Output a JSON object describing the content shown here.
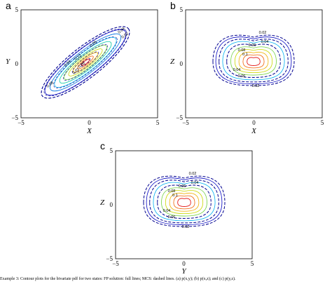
{
  "panels": [
    {
      "letter": "a",
      "xlabel": "X",
      "ylabel": "Y",
      "xticks": [
        "−5",
        "0",
        "5"
      ],
      "yticks": [
        "5",
        "0",
        "−5"
      ],
      "contour_labels": [
        "0.04",
        "0.02",
        "0.06",
        "0.12",
        "0.04",
        "0.06",
        "0.02",
        "0.08"
      ]
    },
    {
      "letter": "b",
      "xlabel": "X",
      "ylabel": "Z",
      "xticks": [
        "−5",
        "0",
        "5"
      ],
      "yticks": [
        "5",
        "0",
        "−5"
      ],
      "contour_labels": [
        "0.02",
        "0.04",
        "0.06",
        "0.08",
        "0.1",
        "0.04",
        "0.06",
        "0.02"
      ]
    },
    {
      "letter": "c",
      "xlabel": "Y",
      "ylabel": "Z",
      "xticks": [
        "−5",
        "0",
        "5"
      ],
      "yticks": [
        "5",
        "0",
        "−5"
      ],
      "contour_labels": [
        "0.02",
        "0.04",
        "0.06",
        "0.08",
        "0.1",
        "0.04",
        "0.06",
        "0.02"
      ]
    }
  ],
  "caption": "Example 3: Contour plots for the bivariate pdf for two states: FP solution: full lines; MCS: dashed lines. (a) p(x,y); (b) p(x,z); and (c) p(y,z).",
  "colors": {
    "levels": [
      "#0000c0",
      "#0070e0",
      "#00b0f0",
      "#00c8a0",
      "#70d040",
      "#c8d800",
      "#f0b000",
      "#f06000",
      "#e00000"
    ],
    "dashed": "#000090"
  },
  "chart_data": [
    {
      "type": "contour",
      "title": "a",
      "xlabel": "X",
      "ylabel": "Y",
      "xlim": [
        -5,
        5
      ],
      "ylim": [
        -5,
        5
      ],
      "levels": [
        0.02,
        0.04,
        0.06,
        0.08,
        0.1,
        0.12
      ],
      "series": [
        {
          "name": "FP solution",
          "style": "full"
        },
        {
          "name": "MCS",
          "style": "dashed"
        }
      ],
      "shape": {
        "center": [
          0,
          0
        ],
        "orientation_deg": 40,
        "elongated": true
      }
    },
    {
      "type": "contour",
      "title": "b",
      "xlabel": "X",
      "ylabel": "Z",
      "xlim": [
        -5,
        5
      ],
      "ylim": [
        -5,
        5
      ],
      "levels": [
        0.02,
        0.04,
        0.06,
        0.08,
        0.1
      ],
      "series": [
        {
          "name": "FP solution",
          "style": "full"
        },
        {
          "name": "MCS",
          "style": "dashed"
        }
      ],
      "shape": {
        "center": [
          0,
          0.3
        ],
        "kidney": true
      }
    },
    {
      "type": "contour",
      "title": "c",
      "xlabel": "Y",
      "ylabel": "Z",
      "xlim": [
        -5,
        5
      ],
      "ylim": [
        -5,
        5
      ],
      "levels": [
        0.02,
        0.04,
        0.06,
        0.08,
        0.1
      ],
      "series": [
        {
          "name": "FP solution",
          "style": "full"
        },
        {
          "name": "MCS",
          "style": "dashed"
        }
      ],
      "shape": {
        "center": [
          0,
          0.3
        ],
        "kidney": true
      }
    }
  ]
}
